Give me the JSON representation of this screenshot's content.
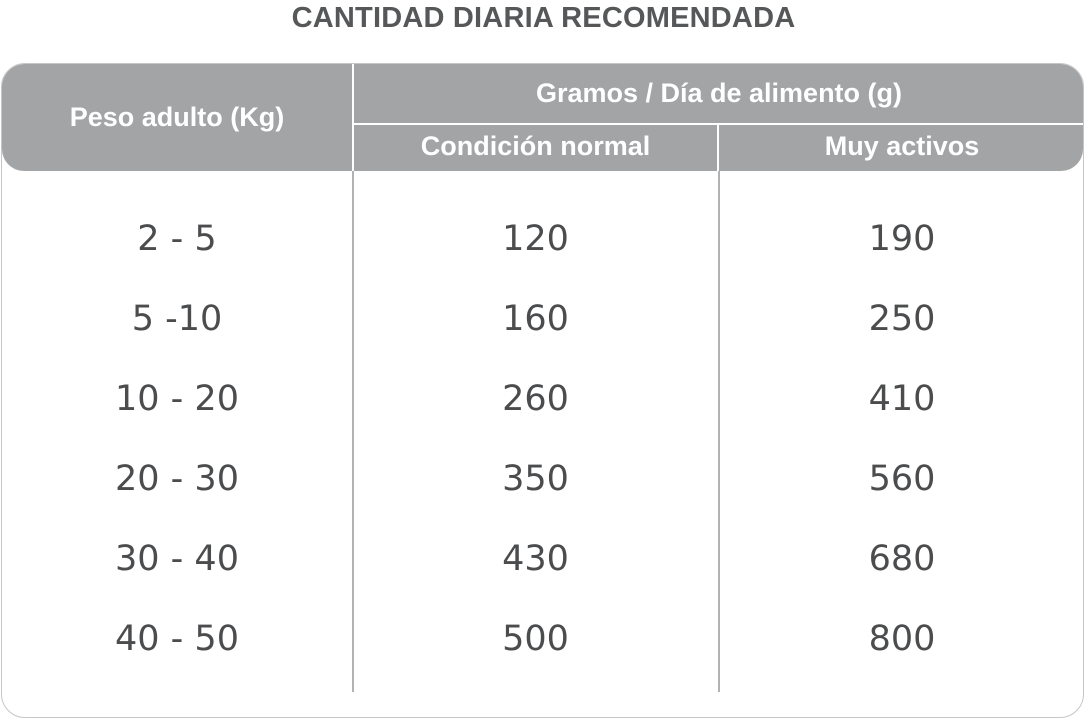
{
  "title": "CANTIDAD DIARIA RECOMENDADA",
  "table": {
    "headers": {
      "peso": "Peso adulto (Kg)",
      "group": "Gramos / Día de alimento (g)",
      "normal": "Condición normal",
      "activos": "Muy activos"
    },
    "rows": [
      {
        "peso": "2 - 5",
        "normal": "120",
        "activos": "190"
      },
      {
        "peso": "5 -10",
        "normal": "160",
        "activos": "250"
      },
      {
        "peso": "10 - 20",
        "normal": "260",
        "activos": "410"
      },
      {
        "peso": "20 - 30",
        "normal": "350",
        "activos": "560"
      },
      {
        "peso": "30 - 40",
        "normal": "430",
        "activos": "680"
      },
      {
        "peso": "40 - 50",
        "normal": "500",
        "activos": "800"
      }
    ]
  },
  "colors": {
    "header_bg": "#a2a4a6",
    "title_text": "#555758",
    "body_text": "#4a4c4e",
    "border": "#c4c6c8"
  }
}
